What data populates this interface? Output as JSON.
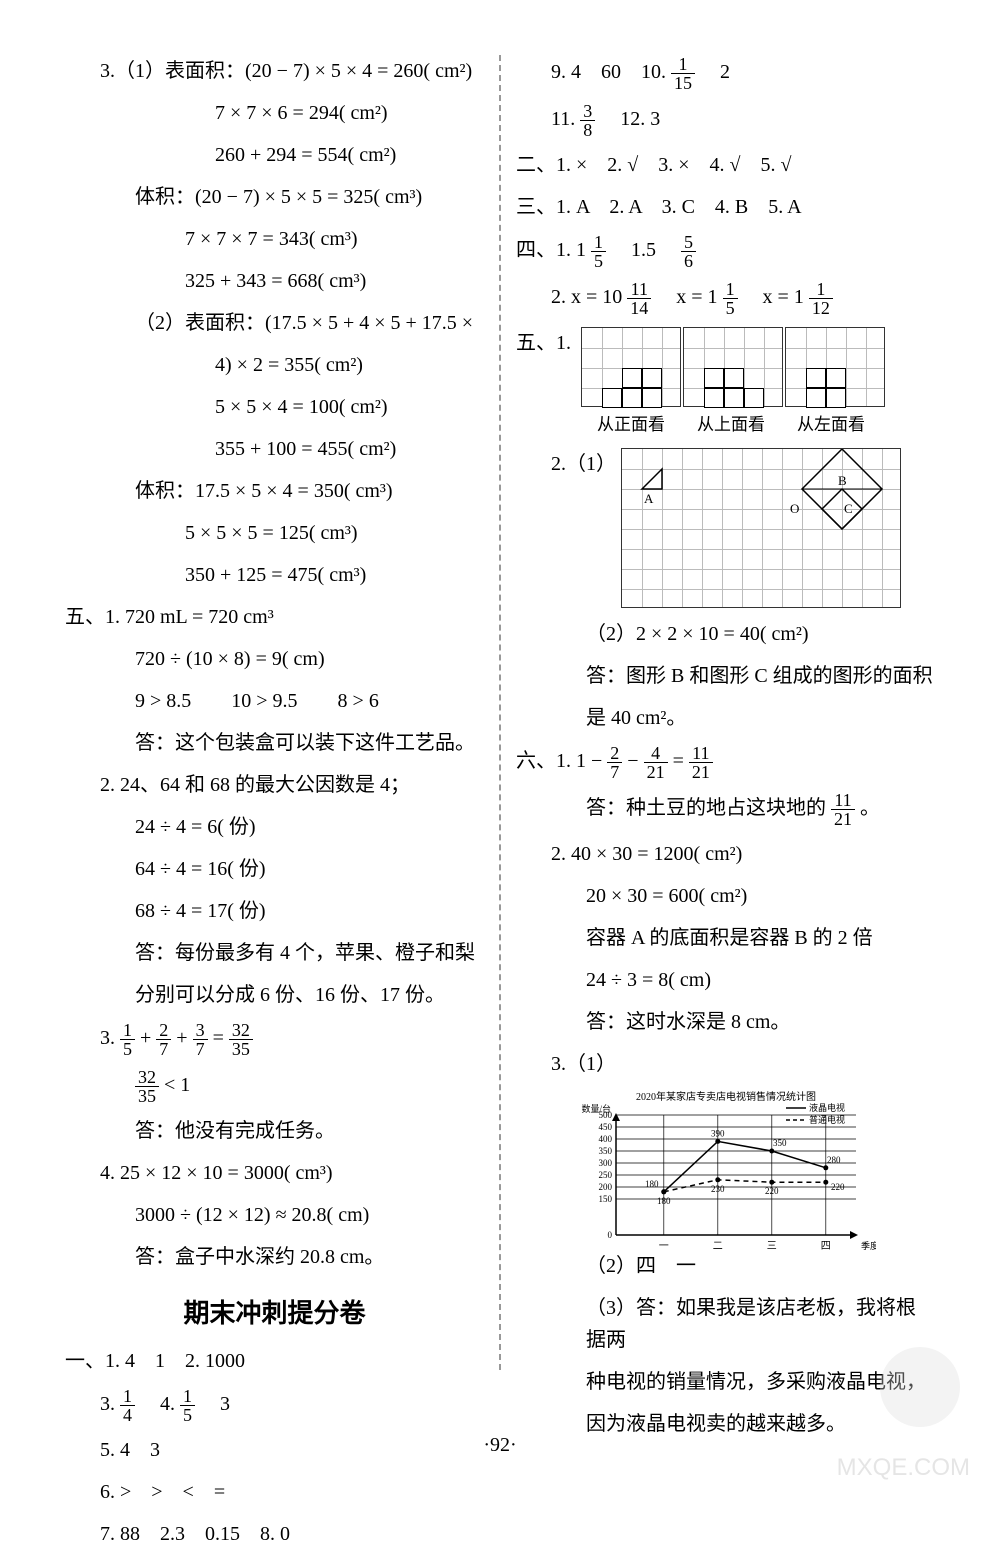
{
  "page_number": "·92·",
  "watermark_text": "MXQE.COM",
  "left_column": {
    "q3_part1": {
      "l1": "3.（1）表面积：(20 − 7) × 5 × 4 = 260( cm²)",
      "l2": "7 × 7 × 6 = 294( cm²)",
      "l3": "260 + 294 = 554( cm²)",
      "l4": "体积：(20 − 7) × 5 × 5 = 325( cm³)",
      "l5": "7 × 7 × 7 = 343( cm³)",
      "l6": "325 + 343 = 668( cm³)",
      "l7": "（2）表面积：(17.5 × 5 + 4 × 5 + 17.5 ×",
      "l8": "4) × 2 = 355( cm²)",
      "l9": "5 × 5 × 4 = 100( cm²)",
      "l10": "355 + 100 = 455( cm²)",
      "l11": "体积：17.5 × 5 × 4 = 350( cm³)",
      "l12": "5 × 5 × 5 = 125( cm³)",
      "l13": "350 + 125 = 475( cm³)"
    },
    "q5": {
      "l1": "五、1. 720 mL = 720 cm³",
      "l2": "720 ÷ (10 × 8) = 9( cm)",
      "l3": "9 > 8.5　　10 > 9.5　　8 > 6",
      "l4": "答：这个包装盒可以装下这件工艺品。",
      "l5": "2. 24、64 和 68 的最大公因数是 4；",
      "l6": "24 ÷ 4 = 6( 份)",
      "l7": "64 ÷ 4 = 16( 份)",
      "l8": "68 ÷ 4 = 17( 份)",
      "l9": "答：每份最多有 4 个，苹果、橙子和梨",
      "l10": "分别可以分成 6 份、16 份、17 份。",
      "l11_pre": "3. ",
      "l11_post": " = ",
      "l11_frac1_n": "1",
      "l11_frac1_d": "5",
      "l11_frac2_n": "2",
      "l11_frac2_d": "7",
      "l11_frac3_n": "3",
      "l11_frac3_d": "7",
      "l11_frac4_n": "32",
      "l11_frac4_d": "35",
      "l12_frac_n": "32",
      "l12_frac_d": "35",
      "l12_post": " < 1",
      "l13": "答：他没有完成任务。",
      "l14": "4. 25 × 12 × 10 = 3000( cm³)",
      "l15": "3000 ÷ (12 × 12) ≈ 20.8( cm)",
      "l16": "答：盒子中水深约 20.8 cm。"
    },
    "section_title": "期末冲刺提分卷",
    "section1": {
      "l1": "一、1. 4　1　2. 1000",
      "l2_pre": "3. ",
      "l2_frac1_n": "1",
      "l2_frac1_d": "4",
      "l2_mid": "　4. ",
      "l2_frac2_n": "1",
      "l2_frac2_d": "5",
      "l2_post": "　3",
      "l3": "5. 4　3",
      "l4": "6. >　>　<　=",
      "l5": "7. 88　2.3　0.15　8. 0"
    }
  },
  "right_column": {
    "top": {
      "l1_pre": "9. 4　60　10. ",
      "l1_frac_n": "1",
      "l1_frac_d": "15",
      "l1_post": "　2",
      "l2_pre": "11. ",
      "l2_frac_n": "3",
      "l2_frac_d": "8",
      "l2_post": "　12. 3",
      "l3": "二、1. ×　2. √　3. ×　4. √　5. √",
      "l4": "三、1. A　2. A　3. C　4. B　5. A",
      "l5_pre": "四、1. 1",
      "l5_frac1_n": "1",
      "l5_frac1_d": "5",
      "l5_mid": "　1.5　",
      "l5_frac2_n": "5",
      "l5_frac2_d": "6",
      "l6_pre": "2. x = 10",
      "l6_frac1_n": "11",
      "l6_frac1_d": "14",
      "l6_mid1": "　x = 1",
      "l6_frac2_n": "1",
      "l6_frac2_d": "5",
      "l6_mid2": "　x = 1",
      "l6_frac3_n": "1",
      "l6_frac3_d": "12"
    },
    "q5_label": "五、1.",
    "view_labels": {
      "front": "从正面看",
      "top": "从上面看",
      "left": "从左面看"
    },
    "q5_2_label": "2.（1）",
    "grid_labels": {
      "A": "A",
      "B": "B",
      "O": "O",
      "C": "C"
    },
    "q5_2b": {
      "l1": "（2）2 × 2 × 10 = 40( cm²)",
      "l2": "答：图形 B 和图形 C 组成的图形的面积",
      "l3": "是 40 cm²。"
    },
    "q6": {
      "l1_pre": "六、1. 1 − ",
      "l1_f1_n": "2",
      "l1_f1_d": "7",
      "l1_mid1": " − ",
      "l1_f2_n": "4",
      "l1_f2_d": "21",
      "l1_mid2": " = ",
      "l1_f3_n": "11",
      "l1_f3_d": "21",
      "l2_pre": "答：种土豆的地占这块地的",
      "l2_f_n": "11",
      "l2_f_d": "21",
      "l2_post": "。",
      "l3": "2. 40 × 30 = 1200( cm²)",
      "l4": "20 × 30 = 600( cm²)",
      "l5": "容器 A 的底面积是容器 B 的 2 倍",
      "l6": "24 ÷ 3 = 8( cm)",
      "l7": "答：这时水深是 8 cm。",
      "l8": "3.（1）",
      "chart_title": "2020年某家店专卖店电视销售情况统计图",
      "chart_ylabel": "数量/台",
      "chart_legend1": "液晶电视",
      "chart_legend2": "普通电视",
      "chart_xlabel": "季度",
      "chart_xticks": [
        "一",
        "二",
        "三",
        "四"
      ],
      "chart_yticks": [
        "0",
        "150",
        "200",
        "250",
        "300",
        "350",
        "400",
        "450",
        "500"
      ],
      "lcd_values": [
        180,
        390,
        350,
        280
      ],
      "normal_values": [
        180,
        230,
        220,
        220
      ],
      "l9": "（2）四　一",
      "l10": "（3）答：如果我是该店老板，我将根据两",
      "l11": "种电视的销量情况，多采购液晶电视，",
      "l12": "因为液晶电视卖的越来越多。"
    }
  }
}
